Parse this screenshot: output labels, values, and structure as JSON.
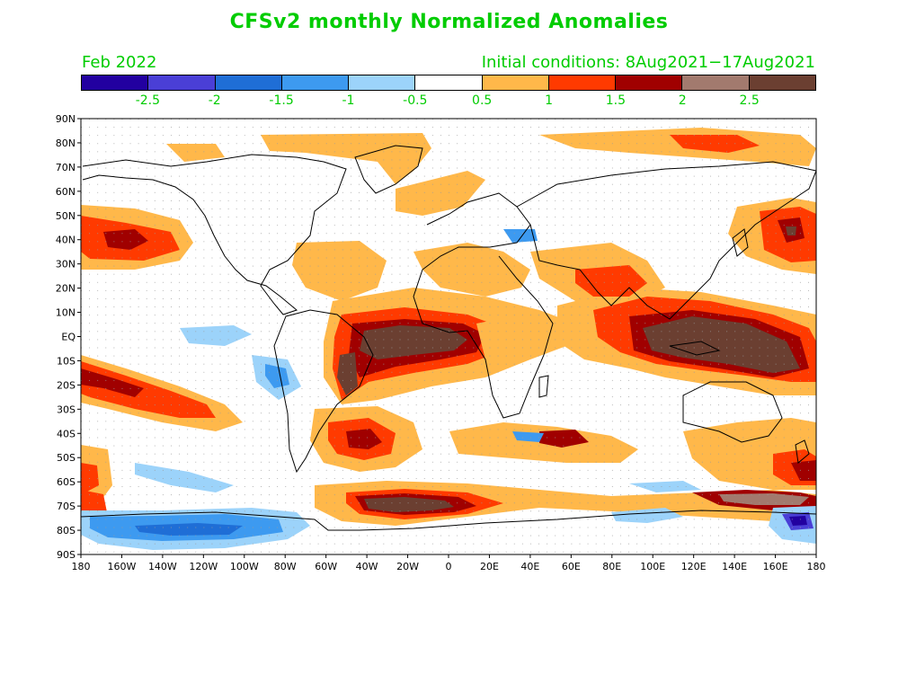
{
  "title": "CFSv2 monthly Normalized Anomalies",
  "valid_month": "Feb 2022",
  "initial_conditions": "Initial conditions: 8Aug2021−17Aug2021",
  "colorbar": {
    "colors": [
      "#2200a0",
      "#4a3fd6",
      "#1f6ed6",
      "#3d9af0",
      "#9cd3fa",
      "#ffffff",
      "#ffb84a",
      "#ff3a00",
      "#a00000",
      "#a27a6e",
      "#6b3f31"
    ],
    "labels": [
      "-2.5",
      "-2",
      "-1.5",
      "-1",
      "-0.5",
      "0.5",
      "1",
      "1.5",
      "2",
      "2.5"
    ]
  },
  "lat_labels": [
    "90N",
    "80N",
    "70N",
    "60N",
    "50N",
    "40N",
    "30N",
    "20N",
    "10N",
    "EQ",
    "10S",
    "20S",
    "30S",
    "40S",
    "50S",
    "60S",
    "70S",
    "80S",
    "90S"
  ],
  "lon_labels": [
    "180",
    "160W",
    "140W",
    "120W",
    "100W",
    "80W",
    "60W",
    "40W",
    "20W",
    "0",
    "20E",
    "40E",
    "60E",
    "80E",
    "100E",
    "120E",
    "140E",
    "160E",
    "180"
  ]
}
